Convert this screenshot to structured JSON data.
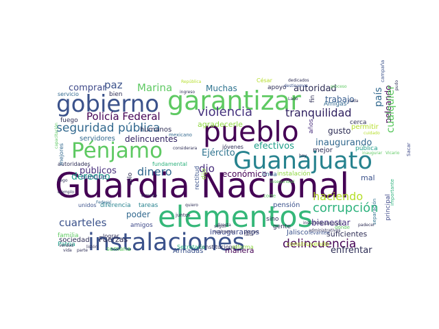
{
  "word_cloud": {
    "words": [
      {
        "text": "Guardia Nacional",
        "color": "#440154"
      },
      {
        "text": "elementos",
        "color": "#35b779"
      },
      {
        "text": "instalaciones",
        "color": "#3b528b"
      },
      {
        "text": "pueblo",
        "color": "#440154"
      },
      {
        "text": "Guanajuato",
        "color": "#26828e"
      },
      {
        "text": "garantizar",
        "color": "#5ec962"
      },
      {
        "text": "gobierno",
        "color": "#3b528b"
      },
      {
        "text": "Pénjamo",
        "color": "#5ec962"
      },
      {
        "text": "violencia",
        "color": "#46327e"
      },
      {
        "text": "seguridad pública",
        "color": "#31688e"
      },
      {
        "text": "tranquilidad",
        "color": "#2d1e5e"
      },
      {
        "text": "Policía Federal",
        "color": "#440154"
      },
      {
        "text": "corrupción",
        "color": "#2db27d"
      },
      {
        "text": "delincuencia",
        "color": "#440154"
      },
      {
        "text": "haciendo",
        "color": "#b5de2b"
      },
      {
        "text": "cuarteles",
        "color": "#3b528b"
      },
      {
        "text": "dinero",
        "color": "#31688e"
      },
      {
        "text": "derecho",
        "color": "#1f9e89"
      },
      {
        "text": "autoridad",
        "color": "#2c2c54"
      },
      {
        "text": "Marina",
        "color": "#5ec962"
      },
      {
        "text": "paz",
        "color": "#3b528b"
      },
      {
        "text": "comprar",
        "color": "#3e4989"
      },
      {
        "text": "Muchas",
        "color": "#2c728e"
      },
      {
        "text": "agradecerle",
        "color": "#8fd744"
      },
      {
        "text": "trabajo",
        "color": "#365c8d"
      },
      {
        "text": "país",
        "color": "#31688e"
      },
      {
        "text": "gusto",
        "color": "#2c2c54"
      },
      {
        "text": "inaugurando",
        "color": "#31688e"
      },
      {
        "text": "peleando",
        "color": "#440154"
      },
      {
        "text": "cualquier",
        "color": "#5ec962"
      },
      {
        "text": "efectivos",
        "color": "#1f9e89"
      },
      {
        "text": "delincuentes",
        "color": "#2d1e5e"
      },
      {
        "text": "Ejército",
        "color": "#2c728e"
      },
      {
        "text": "dio",
        "color": "#472d7b"
      },
      {
        "text": "económico",
        "color": "#440154"
      },
      {
        "text": "bienestar",
        "color": "#46327e"
      },
      {
        "text": "mal",
        "color": "#3b528b"
      },
      {
        "text": "enfrentar",
        "color": "#2c2c54"
      },
      {
        "text": "poder",
        "color": "#31688e"
      },
      {
        "text": "inauguramos",
        "color": "#3e4989"
      },
      {
        "text": "suficientes",
        "color": "#2c2c54"
      },
      {
        "text": "construyendo",
        "color": "#b5de2b"
      },
      {
        "text": "Jalisco",
        "color": "#3b528b"
      },
      {
        "text": "manera",
        "color": "#440154"
      },
      {
        "text": "Armadas",
        "color": "#3b528b"
      },
      {
        "text": "amigos",
        "color": "#3e4989"
      },
      {
        "text": "sociedad",
        "color": "#2c2c54"
      },
      {
        "text": "Fuerzas",
        "color": "#2c2c54"
      },
      {
        "text": "semana",
        "color": "#5ec962"
      },
      {
        "text": "Patria",
        "color": "#1f9e89"
      },
      {
        "text": "familia",
        "color": "#5ec962"
      },
      {
        "text": "diferencia",
        "color": "#26828e"
      },
      {
        "text": "tareas",
        "color": "#26828e"
      },
      {
        "text": "unidos",
        "color": "#3b528b"
      },
      {
        "text": "aunque",
        "color": "#3b528b"
      },
      {
        "text": "públicos",
        "color": "#472d7b"
      },
      {
        "text": "servidores",
        "color": "#31688e"
      },
      {
        "text": "autoridades",
        "color": "#2c2c54"
      },
      {
        "text": "mejores",
        "color": "#31688e"
      },
      {
        "text": "fuego",
        "color": "#2c2c54"
      },
      {
        "text": "humanos",
        "color": "#2c2c54"
      },
      {
        "text": "bien",
        "color": "#2c2c54"
      },
      {
        "text": "servicio",
        "color": "#31688e"
      },
      {
        "text": "apoyo",
        "color": "#2c2c54"
      },
      {
        "text": "fin",
        "color": "#2c2c54"
      },
      {
        "text": "Amigas",
        "color": "#31688e"
      },
      {
        "text": "cerca",
        "color": "#2c2c54"
      },
      {
        "text": "pública",
        "color": "#1f9e89"
      },
      {
        "text": "permitir",
        "color": "#b5de2b"
      },
      {
        "text": "mejor",
        "color": "#2c2c54"
      },
      {
        "text": "años",
        "color": "#472d7b"
      },
      {
        "text": "jóvenes",
        "color": "#2c2c54"
      },
      {
        "text": "sólo",
        "color": "#2c2c54"
      },
      {
        "text": "fundamental",
        "color": "#2db27d"
      },
      {
        "text": "rectitud",
        "color": "#3b528b"
      },
      {
        "text": "dijo",
        "color": "#8fd744"
      },
      {
        "text": "instalación",
        "color": "#8fd744"
      },
      {
        "text": "línea",
        "color": "#31688e"
      },
      {
        "text": "sino",
        "color": "#2c2c54"
      },
      {
        "text": "gente",
        "color": "#2c2c54"
      },
      {
        "text": "pensión",
        "color": "#3b528b"
      },
      {
        "text": "lograr",
        "color": "#2c2c54"
      },
      {
        "text": "constitucional",
        "color": "#2c2c54"
      },
      {
        "text": "reforma",
        "color": "#8fd744"
      },
      {
        "text": "Secretaría",
        "color": "#2db27d"
      },
      {
        "text": "principal",
        "color": "#3e4989"
      },
      {
        "text": "separación",
        "color": "#2c728e"
      },
      {
        "text": "importante",
        "color": "#2db27d"
      },
      {
        "text": "campaña",
        "color": "#3b528b"
      },
      {
        "text": "César",
        "color": "#b5de2b"
      },
      {
        "text": "mexicano",
        "color": "#31688e"
      },
      {
        "text": "Sacar",
        "color": "#3e4989"
      },
      {
        "text": "corte",
        "color": "#5ec962"
      },
      {
        "text": "dónde",
        "color": "#5ec962"
      },
      {
        "text": "juntos",
        "color": "#2c2c54"
      },
      {
        "text": "directa",
        "color": "#2c2c54"
      },
      {
        "text": "República",
        "color": "#b5de2b"
      },
      {
        "text": "Federal",
        "color": "#31688e"
      },
      {
        "text": "levanten",
        "color": "#3b528b"
      },
      {
        "text": "inseguridad",
        "color": "#5ec962"
      },
      {
        "text": "tiempo",
        "color": "#2c2c54"
      },
      {
        "text": "dedicados",
        "color": "#2c2c54"
      },
      {
        "text": "destinamos",
        "color": "#3b528b"
      },
      {
        "text": "proceso",
        "color": "#5ec962"
      },
      {
        "text": "inaugurar",
        "color": "#5ec962"
      },
      {
        "text": "Vicario",
        "color": "#5ec962"
      },
      {
        "text": "pudo",
        "color": "#2c2c54"
      },
      {
        "text": "cada",
        "color": "#2c2c54"
      },
      {
        "text": "falta",
        "color": "#2c2c54"
      },
      {
        "text": "padecer",
        "color": "#2c2c54"
      },
      {
        "text": "instancia",
        "color": "#2c2c54"
      },
      {
        "text": "administrativos",
        "color": "#2c2c54"
      },
      {
        "text": "institución",
        "color": "#2c2c54"
      },
      {
        "text": "cuidado",
        "color": "#b5de2b"
      },
      {
        "text": "Lado",
        "color": "#2c2c54"
      },
      {
        "text": "hoy",
        "color": "#2c2c54"
      },
      {
        "text": "seguir",
        "color": "#2c2c54"
      },
      {
        "text": "realmente",
        "color": "#2c2c54"
      },
      {
        "text": "considerara",
        "color": "#2c2c54"
      },
      {
        "text": "verdad",
        "color": "#2c2c54"
      },
      {
        "text": "vida",
        "color": "#2c2c54"
      },
      {
        "text": "parte",
        "color": "#2c2c54"
      },
      {
        "text": "listón",
        "color": "#2c2c54"
      },
      {
        "text": "llego",
        "color": "#2c2c54"
      },
      {
        "text": "ingreso",
        "color": "#2c2c54"
      },
      {
        "text": "quiero",
        "color": "#2c2c54"
      },
      {
        "text": "capacitación",
        "color": "#5ec962"
      },
      {
        "text": "tomado",
        "color": "#2c2c54"
      },
      {
        "text": "ejemplo",
        "color": "#2c2c54"
      }
    ]
  }
}
